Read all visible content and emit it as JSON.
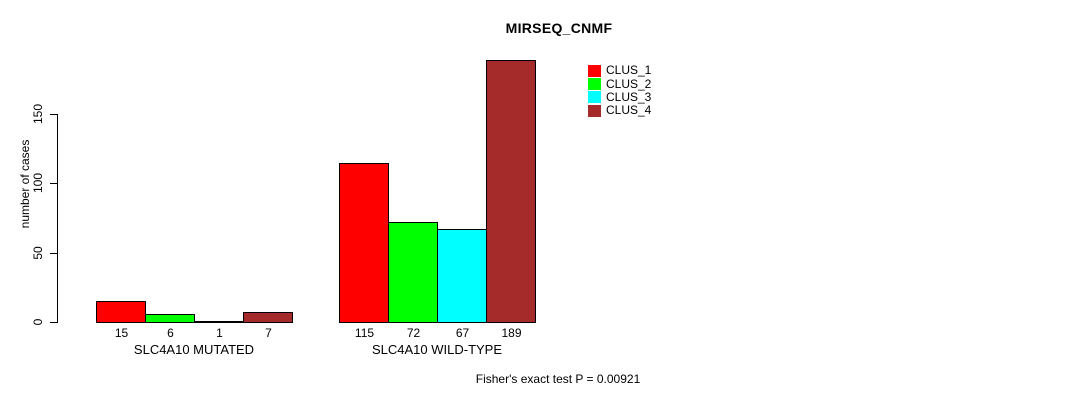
{
  "title": "MIRSEQ_CNMF",
  "chart_data": {
    "type": "bar",
    "title": "MIRSEQ_CNMF",
    "xlabel": "",
    "ylabel": "number of cases",
    "categories": [
      "SLC4A10 MUTATED",
      "SLC4A10 WILD-TYPE"
    ],
    "series": [
      {
        "name": "CLUS_1",
        "color": "#FF0000",
        "values": [
          15,
          115
        ]
      },
      {
        "name": "CLUS_2",
        "color": "#00FF00",
        "values": [
          6,
          72
        ]
      },
      {
        "name": "CLUS_3",
        "color": "#00FFFF",
        "values": [
          1,
          67
        ]
      },
      {
        "name": "CLUS_4",
        "color": "#A52A2A",
        "values": [
          7,
          189
        ]
      }
    ],
    "bar_value_labels": [
      [
        "15",
        "6",
        "1",
        "7"
      ],
      [
        "115",
        "72",
        "67",
        "189"
      ]
    ],
    "yticks": [
      0,
      50,
      100,
      150
    ],
    "ylim": [
      0,
      150
    ],
    "grid": false,
    "legend_position": "top-right",
    "annotation": "Fisher's exact test P = 0.00921"
  },
  "colors": {
    "background": "#FFFFFF",
    "axis": "#000000",
    "bar_border": "#000000",
    "text": "#000000"
  }
}
